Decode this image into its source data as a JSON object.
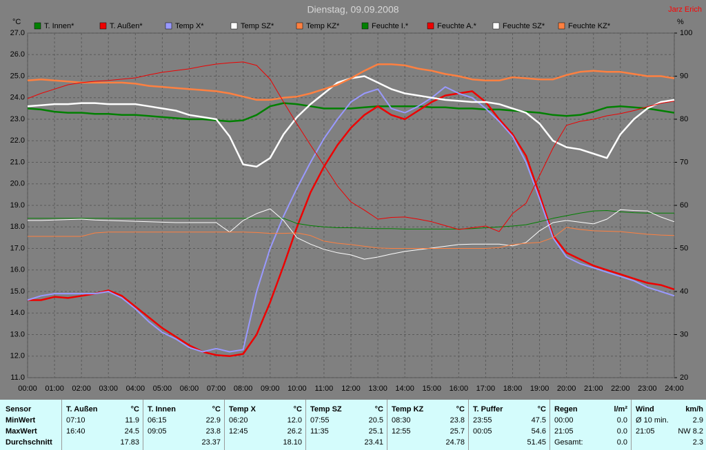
{
  "chart_data": {
    "type": "line",
    "title": "Dienstag, 09.09.2008",
    "author": "Jarz Erich",
    "ylabel": "°C",
    "y2label": "%",
    "grid": true,
    "xlim": [
      0,
      24
    ],
    "xticks": [
      {
        "value": 0,
        "label": "00:00"
      },
      {
        "value": 1,
        "label": "01:00"
      },
      {
        "value": 2,
        "label": "02:00"
      },
      {
        "value": 3,
        "label": "03:00"
      },
      {
        "value": 4,
        "label": "04:00"
      },
      {
        "value": 5,
        "label": "05:00"
      },
      {
        "value": 6,
        "label": "06:00"
      },
      {
        "value": 7,
        "label": "07:00"
      },
      {
        "value": 8,
        "label": "08:00"
      },
      {
        "value": 9,
        "label": "09:00"
      },
      {
        "value": 10,
        "label": "10:00"
      },
      {
        "value": 11,
        "label": "11:00"
      },
      {
        "value": 12,
        "label": "12:00"
      },
      {
        "value": 13,
        "label": "13:00"
      },
      {
        "value": 14,
        "label": "14:00"
      },
      {
        "value": 15,
        "label": "15:00"
      },
      {
        "value": 16,
        "label": "16:00"
      },
      {
        "value": 17,
        "label": "17:00"
      },
      {
        "value": 18,
        "label": "18:00"
      },
      {
        "value": 19,
        "label": "19:00"
      },
      {
        "value": 20,
        "label": "20:00"
      },
      {
        "value": 21,
        "label": "21:00"
      },
      {
        "value": 22,
        "label": "22:00"
      },
      {
        "value": 23,
        "label": "23:00"
      },
      {
        "value": 24,
        "label": "24:00"
      }
    ],
    "ylim": [
      11,
      27
    ],
    "yticks": [
      {
        "value": 11,
        "label": "11.0"
      },
      {
        "value": 12,
        "label": "12.0"
      },
      {
        "value": 13,
        "label": "13.0"
      },
      {
        "value": 14,
        "label": "14.0"
      },
      {
        "value": 15,
        "label": "15.0"
      },
      {
        "value": 16,
        "label": "16.0"
      },
      {
        "value": 17,
        "label": "17.0"
      },
      {
        "value": 18,
        "label": "18.0"
      },
      {
        "value": 19,
        "label": "19.0"
      },
      {
        "value": 20,
        "label": "20.0"
      },
      {
        "value": 21,
        "label": "21.0"
      },
      {
        "value": 22,
        "label": "22.0"
      },
      {
        "value": 23,
        "label": "23.0"
      },
      {
        "value": 24,
        "label": "24.0"
      },
      {
        "value": 25,
        "label": "25.0"
      },
      {
        "value": 26,
        "label": "26.0"
      },
      {
        "value": 27,
        "label": "27.0"
      }
    ],
    "y2lim": [
      20,
      100
    ],
    "y2ticks": [
      20,
      30,
      40,
      50,
      60,
      70,
      80,
      90,
      100
    ],
    "x": [
      0,
      0.5,
      1,
      1.5,
      2,
      2.5,
      3,
      3.5,
      4,
      4.5,
      5,
      5.5,
      6,
      6.5,
      7,
      7.5,
      8,
      8.5,
      9,
      9.5,
      10,
      10.5,
      11,
      11.5,
      12,
      12.5,
      13,
      13.5,
      14,
      14.5,
      15,
      15.5,
      16,
      16.5,
      17,
      17.5,
      18,
      18.5,
      19,
      19.5,
      20,
      20.5,
      21,
      21.5,
      22,
      22.5,
      23,
      23.5,
      24
    ],
    "series": [
      {
        "name": "T. Innen*",
        "color": "#008000",
        "line_width": 2.5,
        "values": [
          23.5,
          23.45,
          23.35,
          23.3,
          23.3,
          23.25,
          23.25,
          23.2,
          23.2,
          23.15,
          23.1,
          23.05,
          23.0,
          23.0,
          22.95,
          22.9,
          22.95,
          23.2,
          23.6,
          23.75,
          23.7,
          23.6,
          23.5,
          23.5,
          23.5,
          23.55,
          23.6,
          23.6,
          23.6,
          23.6,
          23.55,
          23.55,
          23.5,
          23.5,
          23.45,
          23.45,
          23.4,
          23.35,
          23.3,
          23.2,
          23.15,
          23.2,
          23.35,
          23.55,
          23.6,
          23.55,
          23.5,
          23.4,
          23.3
        ]
      },
      {
        "name": "T. Außen*",
        "color": "#ee0000",
        "line_width": 2.5,
        "values": [
          14.6,
          14.6,
          14.75,
          14.7,
          14.8,
          14.9,
          15.05,
          14.8,
          14.3,
          13.8,
          13.3,
          12.9,
          12.5,
          12.2,
          12.05,
          12.0,
          12.1,
          13.0,
          14.5,
          16.2,
          18.0,
          19.6,
          20.8,
          21.8,
          22.6,
          23.2,
          23.6,
          23.2,
          23.0,
          23.4,
          23.8,
          24.1,
          24.2,
          24.3,
          23.8,
          23.0,
          22.3,
          21.3,
          19.5,
          17.6,
          16.8,
          16.5,
          16.2,
          16.0,
          15.8,
          15.6,
          15.4,
          15.3,
          15.1
        ]
      },
      {
        "name": "Temp X*",
        "color": "#9999ff",
        "line_width": 2,
        "values": [
          14.6,
          14.8,
          14.9,
          14.9,
          14.9,
          14.9,
          15.0,
          14.7,
          14.2,
          13.6,
          13.1,
          12.8,
          12.4,
          12.2,
          12.35,
          12.2,
          12.3,
          15.0,
          17.0,
          18.5,
          19.8,
          21.0,
          22.1,
          23.0,
          23.8,
          24.2,
          24.4,
          23.5,
          23.3,
          23.6,
          24.0,
          24.5,
          24.2,
          24.0,
          23.5,
          22.9,
          22.2,
          21.0,
          19.3,
          17.5,
          16.6,
          16.3,
          16.1,
          15.9,
          15.7,
          15.5,
          15.2,
          15.0,
          14.8
        ]
      },
      {
        "name": "Temp SZ*",
        "color": "#ffffff",
        "line_width": 2.5,
        "values": [
          23.6,
          23.65,
          23.7,
          23.7,
          23.75,
          23.75,
          23.7,
          23.7,
          23.7,
          23.6,
          23.5,
          23.4,
          23.2,
          23.1,
          23.0,
          22.2,
          20.9,
          20.8,
          21.2,
          22.3,
          23.1,
          23.7,
          24.2,
          24.7,
          24.9,
          25.0,
          24.7,
          24.4,
          24.2,
          24.1,
          24.0,
          23.9,
          23.85,
          23.8,
          23.8,
          23.7,
          23.5,
          23.3,
          22.8,
          22.0,
          21.7,
          21.6,
          21.4,
          21.2,
          22.3,
          23.0,
          23.5,
          23.8,
          23.9
        ]
      },
      {
        "name": "Temp KZ*",
        "color": "#ff8040",
        "line_width": 2.5,
        "values": [
          24.8,
          24.85,
          24.8,
          24.75,
          24.7,
          24.7,
          24.7,
          24.7,
          24.65,
          24.55,
          24.5,
          24.45,
          24.4,
          24.35,
          24.3,
          24.2,
          24.05,
          23.9,
          23.9,
          24.0,
          24.05,
          24.2,
          24.4,
          24.6,
          24.9,
          25.25,
          25.55,
          25.55,
          25.5,
          25.35,
          25.25,
          25.1,
          25.0,
          24.85,
          24.8,
          24.8,
          24.95,
          24.9,
          24.85,
          24.85,
          25.05,
          25.2,
          25.25,
          25.2,
          25.2,
          25.1,
          25.0,
          25.0,
          24.9
        ]
      },
      {
        "name": "Feuchte I.*",
        "color": "#008000",
        "line_width": 1,
        "axis": "y2",
        "values": [
          57,
          57,
          57,
          57,
          57,
          57,
          57,
          57,
          57,
          57,
          57,
          57,
          57,
          57,
          57,
          57,
          57,
          57,
          57,
          57,
          55.8,
          55.3,
          55,
          54.8,
          54.8,
          54.7,
          54.6,
          54.6,
          54.5,
          54.5,
          54.5,
          54.5,
          54.5,
          54.6,
          54.8,
          55.0,
          55.2,
          55.5,
          56.2,
          57,
          57.6,
          58.2,
          58.7,
          58.8,
          58.5,
          58.3,
          58.2,
          58.2,
          58.2
        ]
      },
      {
        "name": "Feuchte A.*",
        "color": "#ee0000",
        "line_width": 1,
        "axis": "y2",
        "values": [
          84.8,
          86,
          87,
          88,
          88.5,
          88.8,
          89,
          89.3,
          89.6,
          90.3,
          90.9,
          91.3,
          91.7,
          92.3,
          92.8,
          93.1,
          93.3,
          92.5,
          89.3,
          84,
          78.9,
          74,
          69.3,
          64.5,
          60.8,
          58.9,
          56.8,
          57.2,
          57.3,
          56.8,
          56.2,
          55.3,
          54.4,
          54.8,
          55.2,
          53.9,
          58.1,
          60.5,
          66.9,
          73.3,
          78.6,
          79.5,
          80,
          80.8,
          81.3,
          82,
          82.9,
          83.7,
          84.2
        ]
      },
      {
        "name": "Feuchte SZ*",
        "color": "#ffffff",
        "line_width": 1,
        "axis": "y2",
        "values": [
          56.5,
          56.5,
          56.6,
          56.7,
          56.8,
          56.6,
          56.5,
          56.4,
          56.3,
          56.2,
          56.1,
          56.0,
          56.0,
          56.0,
          56.0,
          53.8,
          56.5,
          58.1,
          59.2,
          56.5,
          52.5,
          51,
          49.8,
          49,
          48.5,
          47.5,
          48,
          48.7,
          49.3,
          49.7,
          50.1,
          50.5,
          50.9,
          51,
          51,
          51,
          50.6,
          51.4,
          54.1,
          56,
          56.5,
          56.1,
          55.7,
          56.8,
          59,
          58.8,
          58.7,
          57.3,
          56.2
        ]
      },
      {
        "name": "Feuchte KZ*",
        "color": "#ff8040",
        "line_width": 1,
        "axis": "y2",
        "values": [
          52.8,
          52.8,
          52.8,
          52.8,
          52.8,
          53.6,
          53.8,
          53.8,
          53.8,
          53.8,
          53.8,
          53.8,
          53.8,
          53.8,
          53.8,
          53.8,
          53.8,
          53.7,
          53.5,
          53.5,
          53.6,
          53,
          51.7,
          51.2,
          50.9,
          50.5,
          50.1,
          50,
          50,
          50,
          50,
          50,
          50,
          50,
          50,
          50.2,
          50.9,
          51.2,
          51.4,
          52.5,
          54.9,
          54.4,
          54.1,
          54,
          53.9,
          53.6,
          53.3,
          53.1,
          53
        ]
      }
    ]
  },
  "table": {
    "header": [
      "Sensor",
      "T. Außen",
      "°C",
      "T. Innen",
      "°C",
      "Temp X",
      "°C",
      "Temp SZ",
      "°C",
      "Temp KZ",
      "°C",
      "T. Puffer",
      "°C",
      "Regen",
      "l/m²",
      "Wind",
      "km/h"
    ],
    "rows": [
      [
        "MinWert",
        "07:10",
        "11.9",
        "06:15",
        "22.9",
        "06:20",
        "12.0",
        "07:55",
        "20.5",
        "08:30",
        "23.8",
        "23:55",
        "47.5",
        "00:00",
        "0.0",
        "Ø 10 min.",
        "2.9"
      ],
      [
        "MaxWert",
        "16:40",
        "24.5",
        "09:05",
        "23.8",
        "12:45",
        "26.2",
        "11:35",
        "25.1",
        "12:55",
        "25.7",
        "00:05",
        "54.6",
        "21:05",
        "0.0",
        "21:05",
        "NW 8.2"
      ],
      [
        "Durchschnitt",
        null,
        "17.83",
        null,
        "23.37",
        null,
        "18.10",
        null,
        "23.41",
        null,
        "24.78",
        null,
        "51.45",
        "Gesamt:",
        "0.0",
        null,
        "2.3"
      ]
    ]
  }
}
